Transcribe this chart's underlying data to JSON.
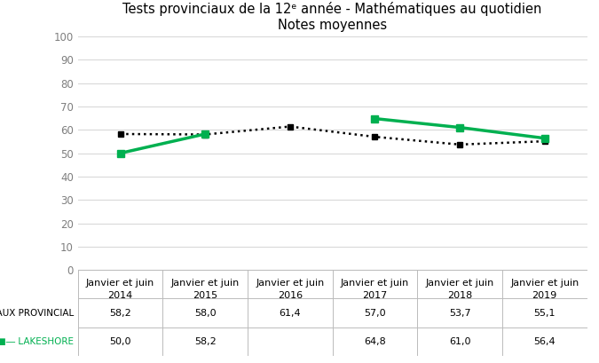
{
  "title_line1": "Tests provinciaux de la 12ᵉ année - Mathématiques au quotidien",
  "title_line2": "Notes moyennes",
  "x_labels": [
    "Janvier et juin\n2014",
    "Janvier et juin\n2015",
    "Janvier et juin\n2016",
    "Janvier et juin\n2017",
    "Janvier et juin\n2018",
    "Janvier et juin\n2019"
  ],
  "provincial_values": [
    58.2,
    58.0,
    61.4,
    57.0,
    53.7,
    55.1
  ],
  "lakeshore_values": [
    50.0,
    58.2,
    null,
    64.8,
    61.0,
    56.4
  ],
  "provincial_label": "TAUX PROVINCIAL",
  "lakeshore_label": "LAKESHORE",
  "provincial_color": "#000000",
  "lakeshore_color": "#00b050",
  "ylim": [
    0,
    100
  ],
  "yticks": [
    0,
    10,
    20,
    30,
    40,
    50,
    60,
    70,
    80,
    90,
    100
  ],
  "table_provincial": [
    "58,2",
    "58,0",
    "61,4",
    "57,0",
    "53,7",
    "55,1"
  ],
  "table_lakeshore": [
    "50,0",
    "58,2",
    "",
    "64,8",
    "61,0",
    "56,4"
  ],
  "background_color": "#ffffff",
  "grid_color": "#d9d9d9",
  "ytick_color": "#7f7f7f",
  "title_fontsize": 10.5,
  "axis_tick_fontsize": 8.5,
  "table_fontsize": 8,
  "label_fontsize": 7.5
}
